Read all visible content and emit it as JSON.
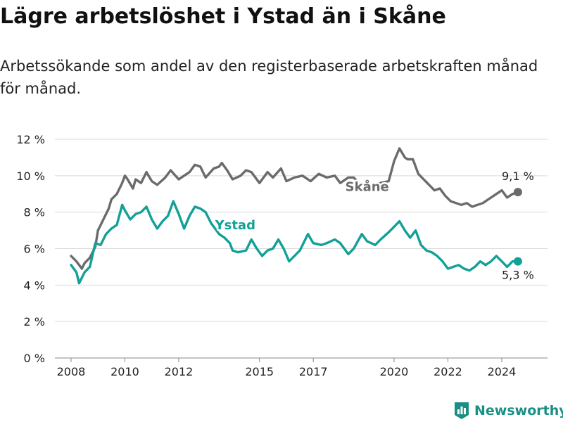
{
  "title": "Lägre arbetslöshet i Ystad än i Skåne",
  "subtitle": "Arbetssökande som andel av den registerbaserade arbetskraften månad för månad.",
  "brand": {
    "name": "Newsworthy",
    "color": "#1a8f86"
  },
  "colors": {
    "skane": "#6b6b6b",
    "ystad": "#12a097",
    "grid": "#d9d9d9",
    "axis": "#888888"
  },
  "chart_data": {
    "type": "line",
    "title": "Lägre arbetslöshet i Ystad än i Skåne",
    "xlabel": "",
    "ylabel": "",
    "xlim": [
      2007.4,
      2025.7
    ],
    "ylim": [
      0,
      12
    ],
    "grid": true,
    "x_ticks": [
      2008,
      2010,
      2012,
      2015,
      2017,
      2020,
      2022,
      2024
    ],
    "y_ticks": [
      0,
      2,
      4,
      6,
      8,
      10,
      12
    ],
    "y_tick_labels": [
      "0 %",
      "2 %",
      "4 %",
      "6 %",
      "8 %",
      "10 %",
      "12 %"
    ],
    "series": [
      {
        "name": "Skåne",
        "end_label": "9,1 %",
        "x": [
          2008.0,
          2008.2,
          2008.4,
          2008.5,
          2008.7,
          2008.9,
          2009.0,
          2009.2,
          2009.4,
          2009.5,
          2009.7,
          2009.9,
          2010.0,
          2010.1,
          2010.3,
          2010.4,
          2010.6,
          2010.8,
          2011.0,
          2011.2,
          2011.5,
          2011.7,
          2012.0,
          2012.2,
          2012.4,
          2012.6,
          2012.8,
          2013.0,
          2013.3,
          2013.5,
          2013.6,
          2013.8,
          2014.0,
          2014.3,
          2014.5,
          2014.7,
          2015.0,
          2015.3,
          2015.5,
          2015.8,
          2016.0,
          2016.3,
          2016.6,
          2016.9,
          2017.2,
          2017.5,
          2017.8,
          2018.0,
          2018.3,
          2018.5,
          2018.8,
          2019.0,
          2019.3,
          2019.5,
          2019.8,
          2020.0,
          2020.2,
          2020.4,
          2020.5,
          2020.7,
          2020.9,
          2021.1,
          2021.3,
          2021.5,
          2021.7,
          2021.9,
          2022.1,
          2022.3,
          2022.5,
          2022.7,
          2022.9,
          2023.1,
          2023.3,
          2023.5,
          2023.8,
          2024.0,
          2024.2,
          2024.4,
          2024.6
        ],
        "values": [
          5.6,
          5.3,
          4.9,
          5.2,
          5.5,
          6.1,
          7.0,
          7.6,
          8.2,
          8.7,
          9.0,
          9.6,
          10.0,
          9.8,
          9.3,
          9.8,
          9.6,
          10.2,
          9.7,
          9.5,
          9.9,
          10.3,
          9.8,
          10.0,
          10.2,
          10.6,
          10.5,
          9.9,
          10.4,
          10.5,
          10.7,
          10.3,
          9.8,
          10.0,
          10.3,
          10.2,
          9.6,
          10.2,
          9.9,
          10.4,
          9.7,
          9.9,
          10.0,
          9.7,
          10.1,
          9.9,
          10.0,
          9.6,
          9.9,
          9.9,
          9.4,
          9.4,
          9.5,
          9.6,
          9.7,
          10.8,
          11.5,
          11.0,
          10.9,
          10.9,
          10.1,
          9.8,
          9.5,
          9.2,
          9.3,
          8.9,
          8.6,
          8.5,
          8.4,
          8.5,
          8.3,
          8.4,
          8.5,
          8.7,
          9.0,
          9.2,
          8.8,
          9.0,
          9.1
        ]
      },
      {
        "name": "Ystad",
        "end_label": "5,3 %",
        "x": [
          2008.0,
          2008.2,
          2008.3,
          2008.5,
          2008.7,
          2008.9,
          2009.1,
          2009.3,
          2009.5,
          2009.7,
          2009.9,
          2010.0,
          2010.2,
          2010.4,
          2010.6,
          2010.8,
          2011.0,
          2011.2,
          2011.4,
          2011.6,
          2011.8,
          2012.0,
          2012.2,
          2012.4,
          2012.6,
          2012.8,
          2013.0,
          2013.2,
          2013.5,
          2013.7,
          2013.9,
          2014.0,
          2014.2,
          2014.5,
          2014.7,
          2014.9,
          2015.1,
          2015.3,
          2015.5,
          2015.7,
          2015.9,
          2016.1,
          2016.3,
          2016.5,
          2016.8,
          2017.0,
          2017.3,
          2017.5,
          2017.8,
          2018.0,
          2018.3,
          2018.5,
          2018.8,
          2019.0,
          2019.3,
          2019.5,
          2019.8,
          2020.0,
          2020.2,
          2020.4,
          2020.6,
          2020.8,
          2021.0,
          2021.2,
          2021.4,
          2021.6,
          2021.8,
          2022.0,
          2022.2,
          2022.4,
          2022.6,
          2022.8,
          2023.0,
          2023.2,
          2023.4,
          2023.6,
          2023.8,
          2024.0,
          2024.2,
          2024.4,
          2024.6
        ],
        "values": [
          5.1,
          4.7,
          4.1,
          4.7,
          5.0,
          6.3,
          6.2,
          6.8,
          7.1,
          7.3,
          8.4,
          8.1,
          7.6,
          7.9,
          8.0,
          8.3,
          7.6,
          7.1,
          7.5,
          7.8,
          8.6,
          7.9,
          7.1,
          7.8,
          8.3,
          8.2,
          8.0,
          7.4,
          6.8,
          6.6,
          6.3,
          5.9,
          5.8,
          5.9,
          6.5,
          6.0,
          5.6,
          5.9,
          6.0,
          6.5,
          6.0,
          5.3,
          5.6,
          5.9,
          6.8,
          6.3,
          6.2,
          6.3,
          6.5,
          6.3,
          5.7,
          6.0,
          6.8,
          6.4,
          6.2,
          6.5,
          6.9,
          7.2,
          7.5,
          7.0,
          6.6,
          7.0,
          6.2,
          5.9,
          5.8,
          5.6,
          5.3,
          4.9,
          5.0,
          5.1,
          4.9,
          4.8,
          5.0,
          5.3,
          5.1,
          5.3,
          5.6,
          5.3,
          5.0,
          5.3,
          5.3
        ]
      }
    ]
  }
}
